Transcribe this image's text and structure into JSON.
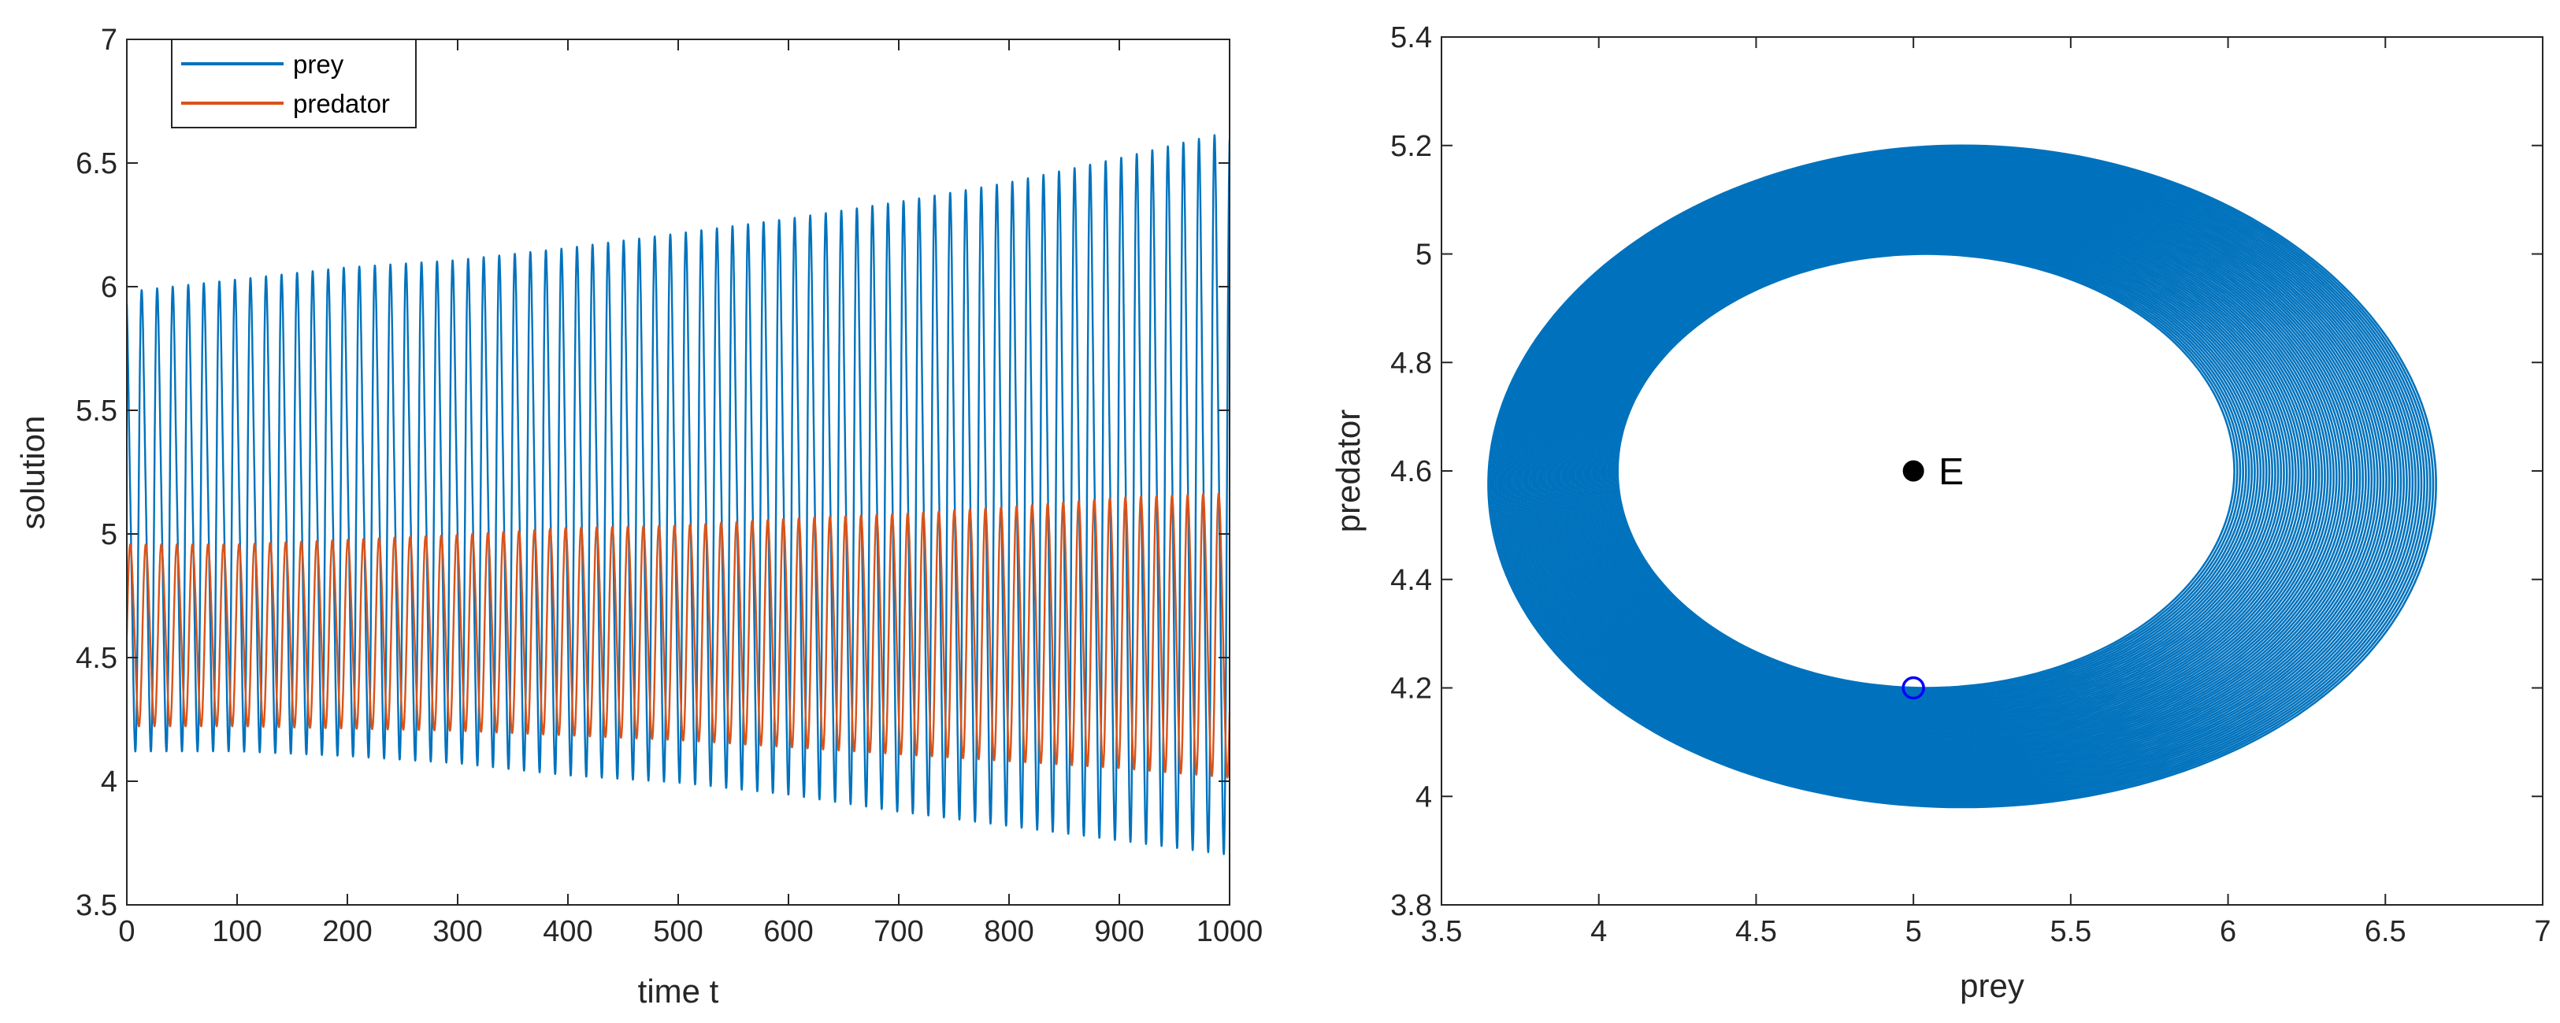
{
  "chart_data": [
    {
      "type": "line",
      "title": "",
      "xlabel": "time t",
      "ylabel": "solution",
      "xlim": [
        0,
        1000
      ],
      "ylim": [
        3.5,
        7
      ],
      "xticks": [
        0,
        100,
        200,
        300,
        400,
        500,
        600,
        700,
        800,
        900,
        1000
      ],
      "xtick_labels": [
        "0",
        "100",
        "200",
        "300",
        "400",
        "500",
        "600",
        "700",
        "800",
        "900",
        "1000"
      ],
      "yticks": [
        3.5,
        4,
        4.5,
        5,
        5.5,
        6,
        6.5,
        7
      ],
      "ytick_labels": [
        "3.5",
        "4",
        "4.5",
        "5",
        "5.5",
        "6",
        "6.5",
        "7"
      ],
      "legend": {
        "position": "top-left",
        "entries": [
          "prey",
          "predator"
        ]
      },
      "series": [
        {
          "name": "prey",
          "color": "#0072BD",
          "period": 14.1,
          "envelope_t": [
            0,
            100,
            200,
            300,
            400,
            500,
            600,
            700,
            800,
            900,
            1000
          ],
          "max": [
            6.0,
            6.05,
            6.1,
            6.13,
            6.18,
            6.24,
            6.3,
            6.37,
            6.45,
            6.55,
            6.66
          ],
          "min": [
            4.1,
            4.1,
            4.08,
            4.05,
            4.0,
            3.97,
            3.92,
            3.85,
            3.79,
            3.73,
            3.67
          ]
        },
        {
          "name": "predator",
          "color": "#D95319",
          "period": 14.1,
          "envelope_t": [
            0,
            100,
            200,
            300,
            400,
            500,
            600,
            700,
            800,
            900,
            1000
          ],
          "max": [
            4.98,
            4.98,
            5.0,
            5.02,
            5.05,
            5.06,
            5.09,
            5.11,
            5.14,
            5.18,
            5.2
          ],
          "min": [
            4.2,
            4.2,
            4.19,
            4.18,
            4.16,
            4.14,
            4.11,
            4.08,
            4.05,
            4.02,
            3.98
          ]
        }
      ]
    },
    {
      "type": "line",
      "title": "",
      "xlabel": "prey",
      "ylabel": "predator",
      "xlim": [
        3.5,
        7
      ],
      "ylim": [
        3.8,
        5.4
      ],
      "xticks": [
        3.5,
        4,
        4.5,
        5,
        5.5,
        6,
        6.5,
        7
      ],
      "xtick_labels": [
        "3.5",
        "4",
        "4.5",
        "5",
        "5.5",
        "6",
        "6.5",
        "7"
      ],
      "yticks": [
        3.8,
        4,
        4.2,
        4.4,
        4.6,
        4.8,
        5,
        5.2,
        5.4
      ],
      "ytick_labels": [
        "3.8",
        "4",
        "4.2",
        "4.4",
        "4.6",
        "4.8",
        "5",
        "5.2",
        "5.4"
      ],
      "series": [
        {
          "name": "phase orbit",
          "color": "#0072BD",
          "inner_orbit": {
            "center": [
              5.0,
              4.6
            ],
            "x_range": [
              4.06,
              6.02
            ],
            "y_range": [
              4.2,
              5.0
            ]
          },
          "outer_orbit": {
            "center": [
              5.05,
              4.6
            ],
            "x_range": [
              3.65,
              6.66
            ],
            "y_range": [
              3.98,
              5.2
            ]
          }
        }
      ],
      "points": [
        {
          "name": "equilibrium",
          "label": "E",
          "x": 5.0,
          "y": 4.6,
          "marker": "filled-circle",
          "color": "#000000"
        },
        {
          "name": "initial-point",
          "label": "",
          "x": 5.0,
          "y": 4.2,
          "marker": "open-circle",
          "color": "#0000FF"
        }
      ]
    }
  ]
}
